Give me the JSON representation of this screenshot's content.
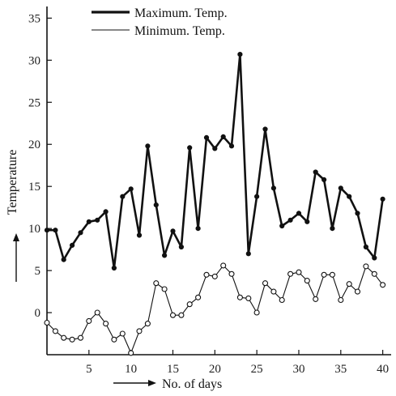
{
  "chart_data": {
    "type": "line",
    "title": "",
    "xlabel": "No. of days",
    "ylabel": "Temperature",
    "xlim": [
      0,
      41
    ],
    "ylim": [
      -5,
      36
    ],
    "xticks": [
      5,
      10,
      15,
      20,
      25,
      30,
      35,
      40
    ],
    "yticks": [
      0,
      5,
      10,
      15,
      20,
      25,
      30,
      35
    ],
    "x_tick_labels": [
      "5",
      "10",
      "15",
      "20",
      "25",
      "30",
      "35",
      "40"
    ],
    "y_tick_labels": [
      "0",
      "5",
      "10",
      "15",
      "20",
      "25",
      "30",
      "35"
    ],
    "grid": false,
    "legend_position": "top",
    "series": [
      {
        "name": "Maximum. Temp.",
        "style": "thick",
        "x": [
          0,
          1,
          2,
          3,
          4,
          5,
          6,
          7,
          8,
          9,
          10,
          11,
          12,
          13,
          14,
          15,
          16,
          17,
          18,
          19,
          20,
          21,
          22,
          23,
          24,
          25,
          26,
          27,
          28,
          29,
          30,
          31,
          32,
          33,
          34,
          35,
          36,
          37,
          38,
          39,
          40
        ],
        "values": [
          9.8,
          9.8,
          6.3,
          8.0,
          9.5,
          10.8,
          11.0,
          12.0,
          5.3,
          13.8,
          14.7,
          9.2,
          19.8,
          12.8,
          6.8,
          9.7,
          7.8,
          19.6,
          10.0,
          20.8,
          19.5,
          20.9,
          19.8,
          30.7,
          7.0,
          13.8,
          21.8,
          14.8,
          10.3,
          11.0,
          11.8,
          10.8,
          16.7,
          15.8,
          10.0,
          14.8,
          13.8,
          11.8,
          7.8,
          6.5,
          13.5
        ]
      },
      {
        "name": "Minimum. Temp.",
        "style": "thin",
        "x": [
          0,
          1,
          2,
          3,
          4,
          5,
          6,
          7,
          8,
          9,
          10,
          11,
          12,
          13,
          14,
          15,
          16,
          17,
          18,
          19,
          20,
          21,
          22,
          23,
          24,
          25,
          26,
          27,
          28,
          29,
          30,
          31,
          32,
          33,
          34,
          35,
          36,
          37,
          38,
          39,
          40
        ],
        "values": [
          -1.2,
          -2.2,
          -3.0,
          -3.2,
          -3.0,
          -1.0,
          0.0,
          -1.3,
          -3.2,
          -2.5,
          -4.8,
          -2.2,
          -1.3,
          3.5,
          2.8,
          -0.3,
          -0.3,
          1.0,
          1.8,
          4.5,
          4.3,
          5.6,
          4.6,
          1.8,
          1.7,
          0.0,
          3.5,
          2.5,
          1.5,
          4.6,
          4.8,
          3.8,
          1.6,
          4.5,
          4.5,
          1.5,
          3.4,
          2.5,
          5.5,
          4.6,
          3.3
        ]
      }
    ],
    "colors": {
      "line": "#111111",
      "axis": "#111111",
      "background": "#ffffff"
    }
  }
}
